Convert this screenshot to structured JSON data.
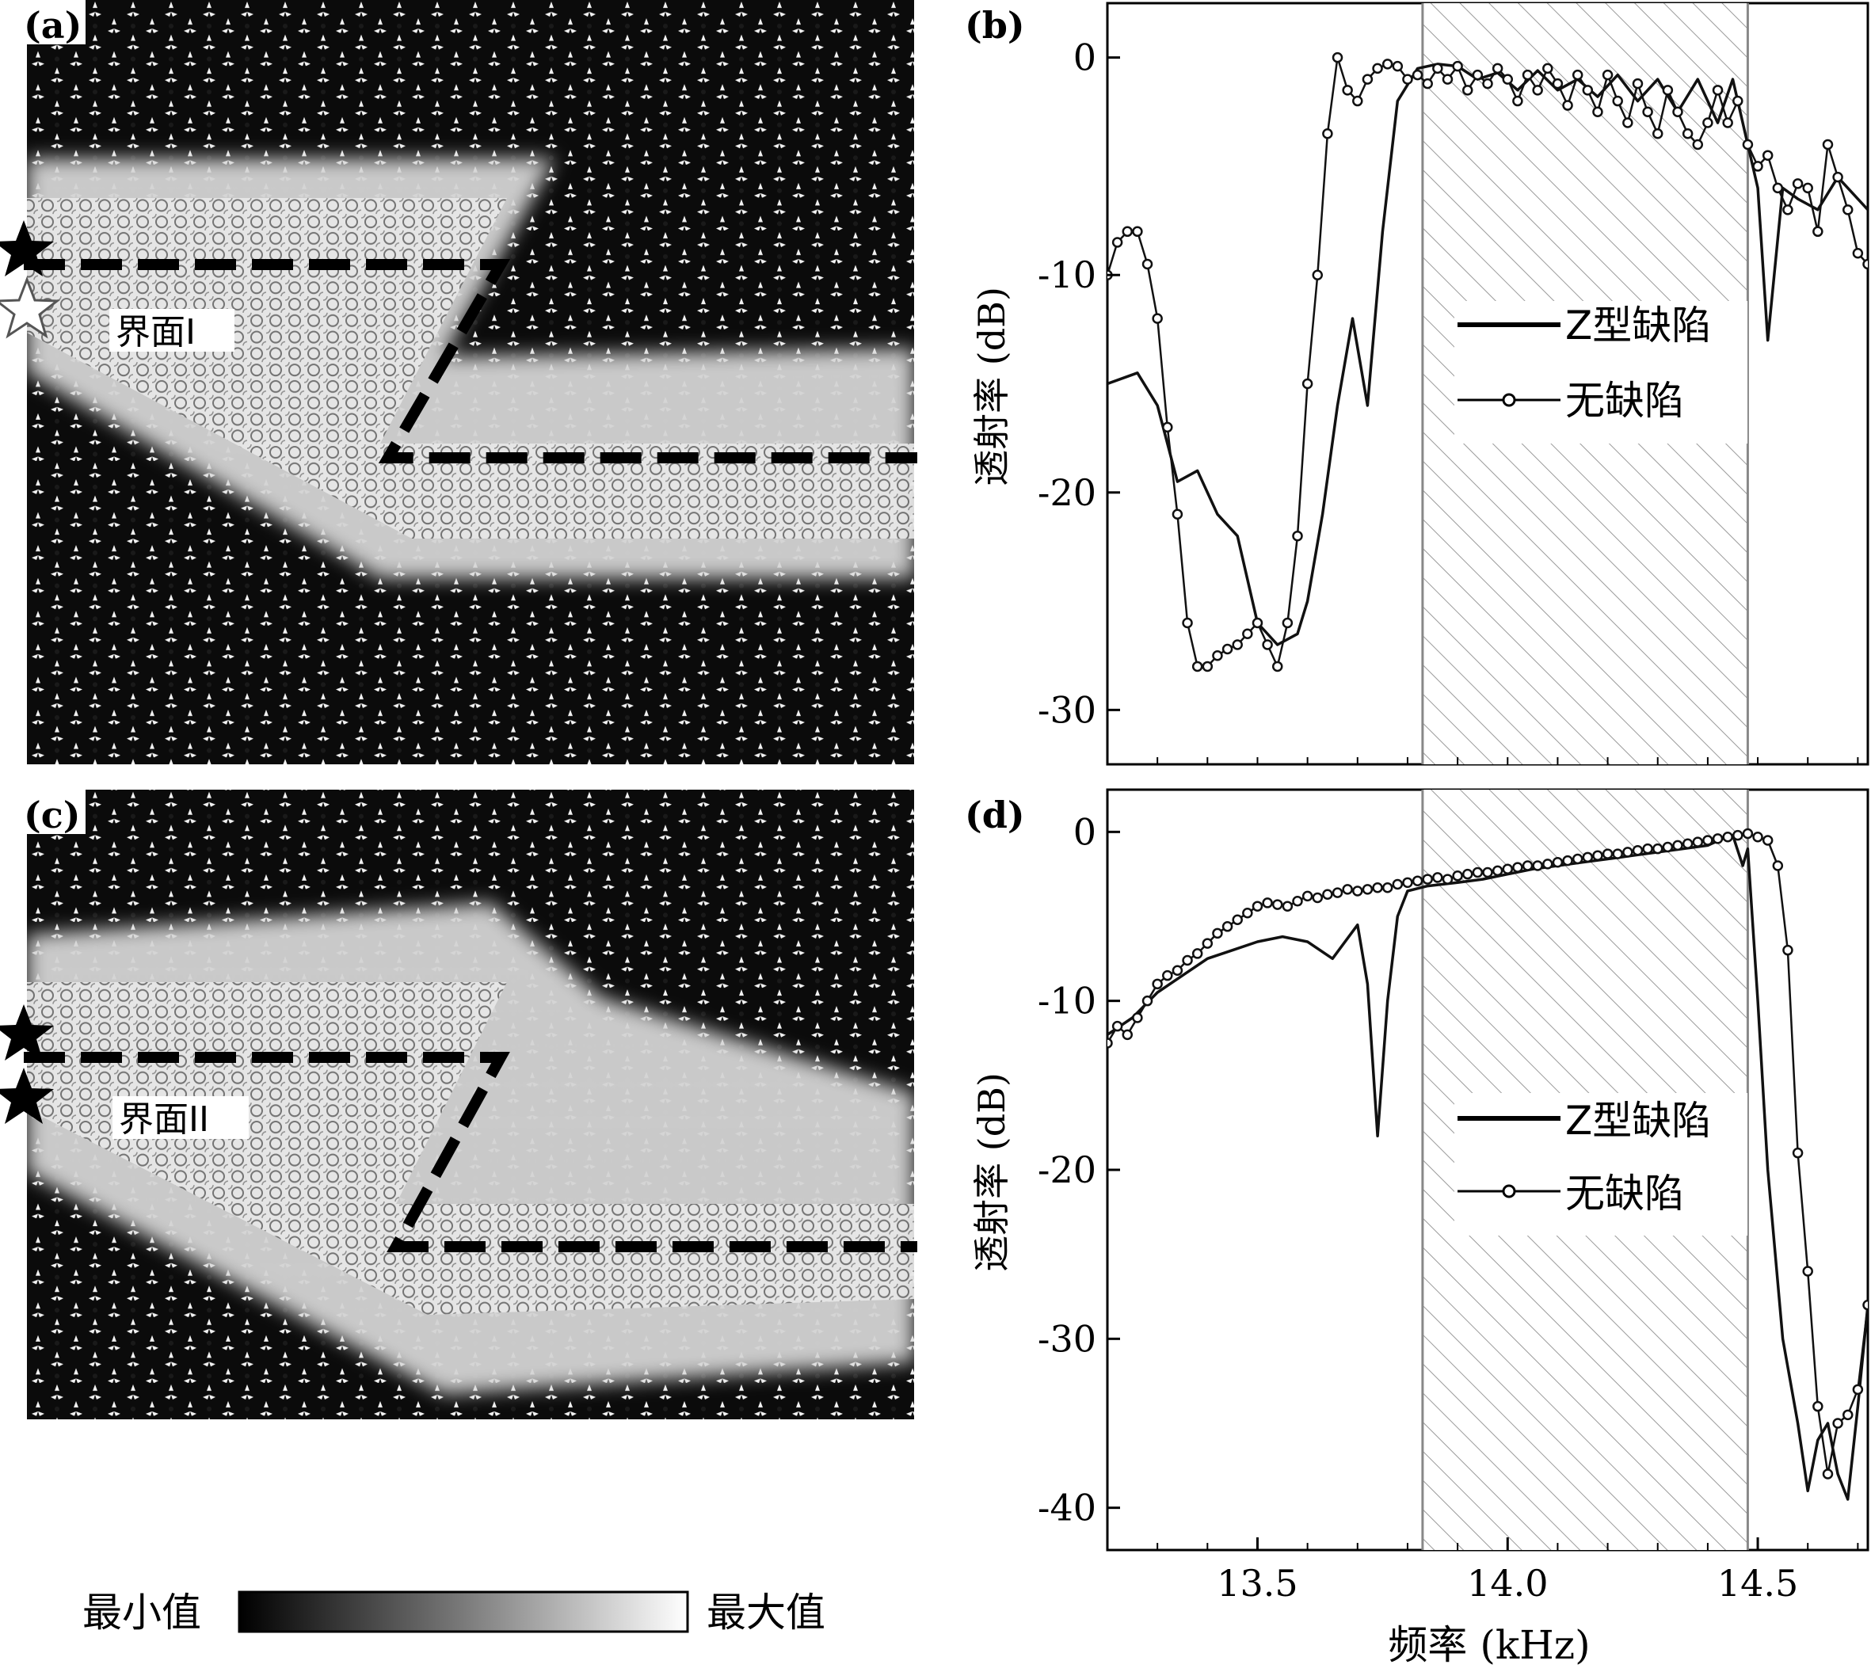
{
  "figure": {
    "panel_labels": [
      "(a)",
      "(b)",
      "(c)",
      "(d)"
    ],
    "interface_labels": [
      "界面I",
      "界面II"
    ],
    "colorbar": {
      "min_label": "最小值",
      "max_label": "最大值"
    }
  },
  "chart_data": [
    {
      "panel": "(b)",
      "type": "line",
      "xlabel": "",
      "ylabel": "透射率 (dB)",
      "xlim": [
        13.2,
        14.72
      ],
      "ylim": [
        -32.5,
        2.5
      ],
      "yticks": [
        0,
        -10,
        -20,
        -30
      ],
      "xticks": [],
      "shaded_band": [
        13.83,
        14.48
      ],
      "legend": "center-right",
      "series": [
        {
          "name": "Z型缺陷",
          "marker": "none",
          "x": [
            13.2,
            13.26,
            13.3,
            13.34,
            13.38,
            13.42,
            13.46,
            13.5,
            13.54,
            13.58,
            13.6,
            13.63,
            13.66,
            13.69,
            13.72,
            13.75,
            13.78,
            13.82,
            13.86,
            13.9,
            13.94,
            13.98,
            14.02,
            14.06,
            14.1,
            14.14,
            14.18,
            14.22,
            14.26,
            14.3,
            14.34,
            14.38,
            14.42,
            14.45,
            14.48,
            14.5,
            14.52,
            14.55,
            14.58,
            14.62,
            14.66,
            14.72
          ],
          "y": [
            -15,
            -14.5,
            -16,
            -19.5,
            -19,
            -21,
            -22,
            -26,
            -27,
            -26.5,
            -25,
            -21,
            -16,
            -12,
            -16,
            -8,
            -2,
            -0.5,
            -0.3,
            -0.4,
            -1,
            -0.7,
            -1.5,
            -0.6,
            -1.5,
            -1,
            -1.8,
            -0.8,
            -2,
            -1,
            -2.5,
            -1,
            -3,
            -1,
            -4,
            -6,
            -13,
            -6,
            -6.5,
            -7,
            -5.5,
            -7
          ]
        },
        {
          "name": "无缺陷",
          "marker": "circle",
          "x": [
            13.2,
            13.22,
            13.24,
            13.26,
            13.28,
            13.3,
            13.32,
            13.34,
            13.36,
            13.38,
            13.4,
            13.42,
            13.44,
            13.46,
            13.48,
            13.5,
            13.52,
            13.54,
            13.56,
            13.58,
            13.6,
            13.62,
            13.64,
            13.66,
            13.68,
            13.7,
            13.72,
            13.74,
            13.76,
            13.78,
            13.8,
            13.82,
            13.84,
            13.86,
            13.88,
            13.9,
            13.92,
            13.94,
            13.96,
            13.98,
            14.0,
            14.02,
            14.04,
            14.06,
            14.08,
            14.1,
            14.12,
            14.14,
            14.16,
            14.18,
            14.2,
            14.22,
            14.24,
            14.26,
            14.28,
            14.3,
            14.32,
            14.34,
            14.36,
            14.38,
            14.4,
            14.42,
            14.44,
            14.46,
            14.48,
            14.5,
            14.52,
            14.54,
            14.56,
            14.58,
            14.6,
            14.62,
            14.64,
            14.66,
            14.68,
            14.7,
            14.72
          ],
          "y": [
            -10,
            -8.5,
            -8,
            -8,
            -9.5,
            -12,
            -17,
            -21,
            -26,
            -28,
            -28,
            -27.5,
            -27.2,
            -27,
            -26.5,
            -26,
            -27,
            -28,
            -26,
            -22,
            -15,
            -10,
            -3.5,
            0,
            -1.5,
            -2,
            -1,
            -0.5,
            -0.3,
            -0.4,
            -1,
            -0.8,
            -1.2,
            -0.5,
            -1,
            -0.4,
            -1.5,
            -0.8,
            -1.2,
            -0.5,
            -1,
            -2,
            -0.8,
            -1.5,
            -0.5,
            -1.2,
            -2.2,
            -0.8,
            -1.5,
            -2.5,
            -0.8,
            -2,
            -3,
            -1.2,
            -2.5,
            -3.5,
            -1.5,
            -2.5,
            -3.5,
            -4,
            -3,
            -1.5,
            -3,
            -2,
            -4,
            -5,
            -4.5,
            -6,
            -7,
            -5.8,
            -6,
            -8,
            -4,
            -5.5,
            -7,
            -9,
            -9.5
          ]
        }
      ]
    },
    {
      "panel": "(d)",
      "type": "line",
      "xlabel": "频率 (kHz)",
      "ylabel": "透射率 (dB)",
      "xlim": [
        13.2,
        14.72
      ],
      "ylim": [
        -42.5,
        2.5
      ],
      "yticks": [
        0,
        -10,
        -20,
        -30,
        -40
      ],
      "xticks": [
        13.5,
        14.0,
        14.5
      ],
      "xtick_labels": [
        "13.5",
        "14.0",
        "14.5"
      ],
      "shaded_band": [
        13.83,
        14.48
      ],
      "legend": "center-right",
      "series": [
        {
          "name": "Z型缺陷",
          "marker": "none",
          "x": [
            13.2,
            13.25,
            13.3,
            13.35,
            13.4,
            13.45,
            13.5,
            13.55,
            13.6,
            13.65,
            13.7,
            13.72,
            13.74,
            13.76,
            13.78,
            13.8,
            13.84,
            13.9,
            13.95,
            14.0,
            14.05,
            14.1,
            14.15,
            14.2,
            14.25,
            14.3,
            14.35,
            14.4,
            14.43,
            14.45,
            14.47,
            14.48,
            14.5,
            14.52,
            14.55,
            14.58,
            14.6,
            14.62,
            14.64,
            14.66,
            14.68,
            14.7,
            14.72
          ],
          "y": [
            -12,
            -11,
            -9.5,
            -8.5,
            -7.5,
            -7,
            -6.5,
            -6.2,
            -6.5,
            -7.5,
            -5.5,
            -9,
            -18,
            -10,
            -5,
            -3.5,
            -3.2,
            -3,
            -2.8,
            -2.5,
            -2.2,
            -2,
            -1.8,
            -1.6,
            -1.4,
            -1.2,
            -1,
            -0.8,
            -0.4,
            -0.2,
            -2,
            -1,
            -10,
            -20,
            -30,
            -35,
            -39,
            -36,
            -35,
            -38,
            -39.5,
            -34,
            -28
          ]
        },
        {
          "name": "无缺陷",
          "marker": "circle",
          "x": [
            13.2,
            13.22,
            13.24,
            13.26,
            13.28,
            13.3,
            13.32,
            13.34,
            13.36,
            13.38,
            13.4,
            13.42,
            13.44,
            13.46,
            13.48,
            13.5,
            13.52,
            13.54,
            13.56,
            13.58,
            13.6,
            13.62,
            13.64,
            13.66,
            13.68,
            13.7,
            13.72,
            13.74,
            13.76,
            13.78,
            13.8,
            13.82,
            13.84,
            13.86,
            13.88,
            13.9,
            13.92,
            13.94,
            13.96,
            13.98,
            14.0,
            14.02,
            14.04,
            14.06,
            14.08,
            14.1,
            14.12,
            14.14,
            14.16,
            14.18,
            14.2,
            14.22,
            14.24,
            14.26,
            14.28,
            14.3,
            14.32,
            14.34,
            14.36,
            14.38,
            14.4,
            14.42,
            14.44,
            14.46,
            14.48,
            14.5,
            14.52,
            14.54,
            14.56,
            14.58,
            14.6,
            14.62,
            14.64,
            14.66,
            14.68,
            14.7,
            14.72
          ],
          "y": [
            -12.5,
            -11.5,
            -12,
            -11,
            -10,
            -9,
            -8.5,
            -8.2,
            -7.6,
            -7.2,
            -6.6,
            -6,
            -5.6,
            -5.2,
            -4.8,
            -4.4,
            -4.2,
            -4.3,
            -4.4,
            -4.1,
            -3.8,
            -3.9,
            -3.7,
            -3.6,
            -3.4,
            -3.5,
            -3.4,
            -3.3,
            -3.3,
            -3.1,
            -3,
            -2.9,
            -2.8,
            -2.7,
            -2.8,
            -2.6,
            -2.5,
            -2.4,
            -2.4,
            -2.3,
            -2.2,
            -2.1,
            -2,
            -2,
            -1.9,
            -1.8,
            -1.7,
            -1.6,
            -1.5,
            -1.4,
            -1.3,
            -1.3,
            -1.2,
            -1.1,
            -1,
            -1,
            -0.9,
            -0.8,
            -0.7,
            -0.6,
            -0.5,
            -0.4,
            -0.3,
            -0.2,
            -0.1,
            -0.3,
            -0.5,
            -2,
            -7,
            -19,
            -26,
            -34,
            -38,
            -35,
            -34.5,
            -33,
            -28
          ]
        }
      ]
    }
  ]
}
